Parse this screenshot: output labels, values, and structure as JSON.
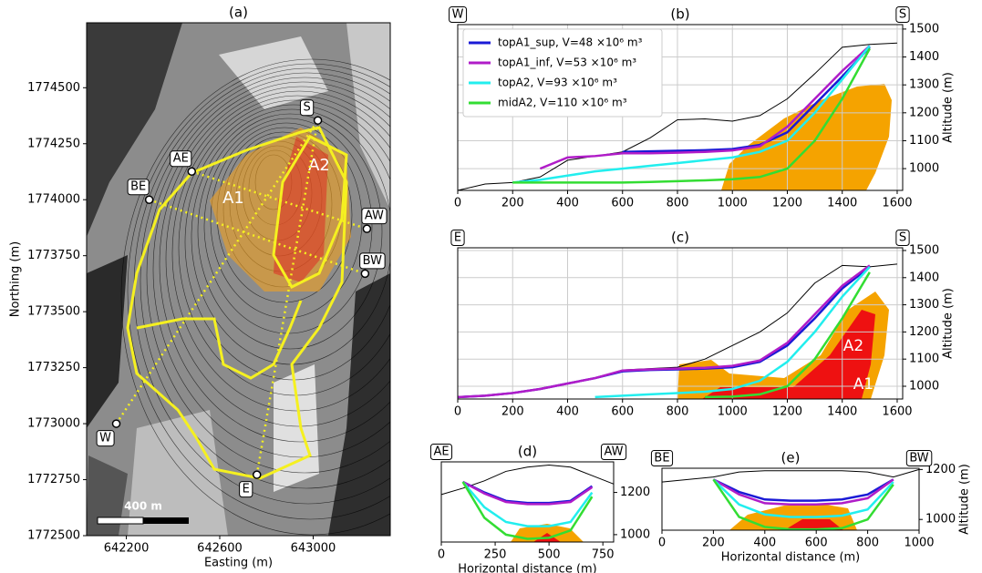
{
  "chart_data": [
    {
      "type": "map",
      "title": "(a)",
      "xlabel": "Easting (m)",
      "ylabel": "Northing (m)",
      "xlim": [
        642030,
        643330
      ],
      "ylim": [
        1772500,
        1774790
      ],
      "xticks": [
        642200,
        642600,
        643000
      ],
      "yticks": [
        1772500,
        1772750,
        1773000,
        1773250,
        1773500,
        1773750,
        1774000,
        1774250,
        1774500
      ],
      "points": [
        {
          "label": "S",
          "x": 643020,
          "y": 1774354
        },
        {
          "label": "AE",
          "x": 642480,
          "y": 1774126
        },
        {
          "label": "BE",
          "x": 642298,
          "y": 1774000
        },
        {
          "label": "AW",
          "x": 643230,
          "y": 1773870
        },
        {
          "label": "BW",
          "x": 643222,
          "y": 1773670
        },
        {
          "label": "W",
          "x": 642157,
          "y": 1773000
        },
        {
          "label": "E",
          "x": 642759,
          "y": 1772772
        }
      ],
      "annotations": [
        "A1",
        "A2"
      ],
      "scale_label": "400 m"
    },
    {
      "type": "line",
      "title": "(b)",
      "left_label": "W",
      "right_label": "S",
      "ylabel": "Altitude (m)",
      "grid": true,
      "legend": "upper left",
      "xlim": [
        0,
        1620
      ],
      "ylim": [
        922,
        1516
      ],
      "xticks": [
        0,
        200,
        400,
        600,
        800,
        1000,
        1200,
        1400,
        1600
      ],
      "yticks": [
        1000,
        1100,
        1200,
        1300,
        1400,
        1500
      ],
      "x": [
        0,
        100,
        200,
        300,
        400,
        500,
        600,
        700,
        800,
        900,
        1000,
        1100,
        1200,
        1300,
        1400,
        1500,
        1600
      ],
      "series": [
        {
          "color": "#000000",
          "values": [
            922,
            945,
            950,
            970,
            1030,
            1045,
            1060,
            1110,
            1175,
            1178,
            1170,
            1190,
            1250,
            1340,
            1435,
            1445,
            1450
          ]
        },
        {
          "name": "topA1_sup, V=48 ×10⁶ m³",
          "color": "#1a1ad6",
          "values": [
            null,
            null,
            null,
            null,
            null,
            null,
            1060,
            1062,
            1064,
            1066,
            1070,
            1085,
            1130,
            1230,
            1330,
            1435,
            null
          ]
        },
        {
          "name": "topA1_inf, V=53 ×10⁶ m³",
          "color": "#b01cc8",
          "values": [
            null,
            null,
            null,
            1000,
            1040,
            1045,
            1055,
            1055,
            1057,
            1060,
            1065,
            1080,
            1150,
            1250,
            1350,
            1440,
            null
          ]
        },
        {
          "name": "topA2, V=93 ×10⁶ m³",
          "color": "#22eeee",
          "values": [
            null,
            null,
            950,
            960,
            975,
            990,
            1000,
            1010,
            1020,
            1030,
            1040,
            1060,
            1100,
            1200,
            1320,
            1440,
            null
          ]
        },
        {
          "name": "midA2, V=110 ×10⁶ m³",
          "color": "#33dd33",
          "values": [
            null,
            null,
            950,
            950,
            950,
            950,
            950,
            952,
            955,
            958,
            962,
            970,
            1000,
            1100,
            1250,
            1430,
            null
          ]
        }
      ]
    },
    {
      "type": "line",
      "title": "(c)",
      "left_label": "E",
      "right_label": "S",
      "ylabel": "Altitude (m)",
      "grid": true,
      "xlim": [
        0,
        1620
      ],
      "ylim": [
        953,
        1510
      ],
      "xticks": [
        0,
        200,
        400,
        600,
        800,
        1000,
        1200,
        1400,
        1600
      ],
      "yticks": [
        1000,
        1100,
        1200,
        1300,
        1400,
        1500
      ],
      "x": [
        0,
        100,
        200,
        300,
        400,
        500,
        600,
        700,
        800,
        900,
        1000,
        1100,
        1200,
        1300,
        1400,
        1500,
        1600
      ],
      "series": [
        {
          "color": "#000000",
          "values": [
            960,
            965,
            975,
            990,
            1010,
            1030,
            1060,
            1065,
            1070,
            1100,
            1150,
            1200,
            1270,
            1380,
            1445,
            1440,
            1450
          ]
        },
        {
          "color": "#1a1ad6",
          "values": [
            960,
            965,
            975,
            990,
            1010,
            1030,
            1055,
            1060,
            1062,
            1065,
            1070,
            1090,
            1150,
            1250,
            1360,
            1440,
            null
          ]
        },
        {
          "color": "#b01cc8",
          "values": [
            960,
            965,
            975,
            990,
            1010,
            1030,
            1058,
            1062,
            1065,
            1068,
            1075,
            1095,
            1160,
            1265,
            1370,
            1445,
            null
          ]
        },
        {
          "color": "#22eeee",
          "values": [
            null,
            null,
            null,
            null,
            null,
            960,
            965,
            970,
            975,
            980,
            990,
            1020,
            1090,
            1200,
            1330,
            1440,
            null
          ]
        },
        {
          "color": "#33dd33",
          "values": [
            null,
            null,
            null,
            null,
            null,
            null,
            null,
            null,
            null,
            960,
            962,
            970,
            1000,
            1100,
            1250,
            1420,
            null
          ]
        }
      ],
      "annotations": [
        "A2",
        "A1"
      ]
    },
    {
      "type": "line",
      "title": "(d)",
      "left_label": "AE",
      "right_label": "AW",
      "xlabel": "Horizontal distance (m)",
      "grid": false,
      "xlim": [
        0,
        800
      ],
      "ylim": [
        965,
        1345
      ],
      "xticks": [
        0,
        250,
        500,
        750
      ],
      "yticks": [
        1000,
        1200
      ],
      "x": [
        0,
        100,
        200,
        300,
        400,
        500,
        600,
        700,
        800
      ],
      "series": [
        {
          "color": "#000000",
          "values": [
            1190,
            1220,
            1255,
            1300,
            1320,
            1330,
            1320,
            1280,
            1240
          ]
        },
        {
          "color": "#1a1ad6",
          "values": [
            null,
            1250,
            1200,
            1160,
            1150,
            1150,
            1160,
            1230,
            null
          ]
        },
        {
          "color": "#b01cc8",
          "values": [
            null,
            1250,
            1195,
            1155,
            1145,
            1145,
            1155,
            1225,
            null
          ]
        },
        {
          "color": "#22eeee",
          "values": [
            null,
            1250,
            1130,
            1060,
            1040,
            1040,
            1060,
            1200,
            null
          ]
        },
        {
          "color": "#33dd33",
          "values": [
            null,
            1250,
            1080,
            1000,
            980,
            985,
            1020,
            1180,
            null
          ]
        }
      ]
    },
    {
      "type": "line",
      "title": "(e)",
      "left_label": "BE",
      "right_label": "BW",
      "xlabel": "Horizontal distance (m)",
      "ylabel": "Altitude (m)",
      "grid": false,
      "xlim": [
        0,
        1000
      ],
      "ylim": [
        957,
        1205
      ],
      "xticks": [
        0,
        200,
        400,
        600,
        800,
        1000
      ],
      "yticks": [
        1000,
        1200
      ],
      "x": [
        0,
        100,
        200,
        300,
        400,
        500,
        600,
        700,
        800,
        900,
        1000
      ],
      "series": [
        {
          "color": "#000000",
          "values": [
            1150,
            1160,
            1170,
            1190,
            1195,
            1195,
            1195,
            1195,
            1190,
            1170,
            1200
          ]
        },
        {
          "color": "#1a1ad6",
          "values": [
            null,
            null,
            1160,
            1110,
            1080,
            1075,
            1075,
            1080,
            1100,
            1160,
            null
          ]
        },
        {
          "color": "#b01cc8",
          "values": [
            null,
            null,
            1160,
            1100,
            1065,
            1060,
            1060,
            1065,
            1085,
            1160,
            null
          ]
        },
        {
          "color": "#22eeee",
          "values": [
            null,
            null,
            1160,
            1060,
            1020,
            1010,
            1010,
            1015,
            1040,
            1150,
            null
          ]
        },
        {
          "color": "#33dd33",
          "values": [
            null,
            null,
            1160,
            1010,
            970,
            960,
            960,
            965,
            1000,
            1140,
            null
          ]
        }
      ]
    }
  ]
}
